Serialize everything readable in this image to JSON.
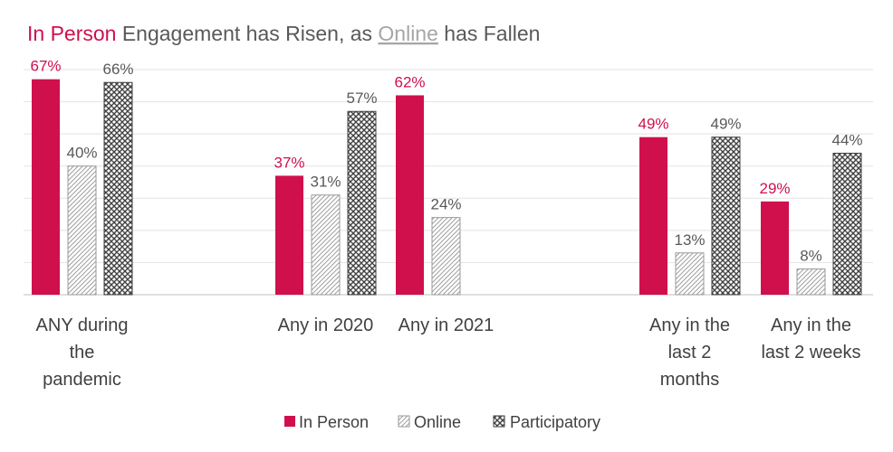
{
  "chart_data": {
    "type": "bar",
    "title_parts": {
      "in_person": "In Person",
      "mid": " Engagement has Risen, as ",
      "online": "Online",
      "end": " has Fallen"
    },
    "categories": [
      [
        "ANY during",
        "the",
        "pandemic"
      ],
      [
        "Any in 2020"
      ],
      [
        "Any in 2021"
      ],
      [
        "Any in the",
        "last 2",
        "months"
      ],
      [
        "Any in the",
        "last 2 weeks"
      ]
    ],
    "series": [
      {
        "name": "In Person",
        "values": [
          67,
          37,
          62,
          49,
          29
        ],
        "labels": [
          "67%",
          "37%",
          "62%",
          "49%",
          "29%"
        ],
        "color": "#d0104c",
        "style": "solid"
      },
      {
        "name": "Online",
        "values": [
          40,
          31,
          24,
          13,
          8
        ],
        "labels": [
          "40%",
          "31%",
          "24%",
          "13%",
          "8%"
        ],
        "color": "#7f7f7f",
        "style": "diagonal-hatch"
      },
      {
        "name": "Participatory",
        "values": [
          66,
          57,
          null,
          49,
          44
        ],
        "labels": [
          "66%",
          "57%",
          "",
          "49%",
          "44%"
        ],
        "color": "#404040",
        "style": "crosshatch"
      }
    ],
    "ylim": [
      0,
      70
    ],
    "grid": true,
    "legend": "bottom",
    "value_label_colors": {
      "In Person": "#d0104c",
      "Online": "#595959",
      "Participatory": "#595959"
    }
  }
}
